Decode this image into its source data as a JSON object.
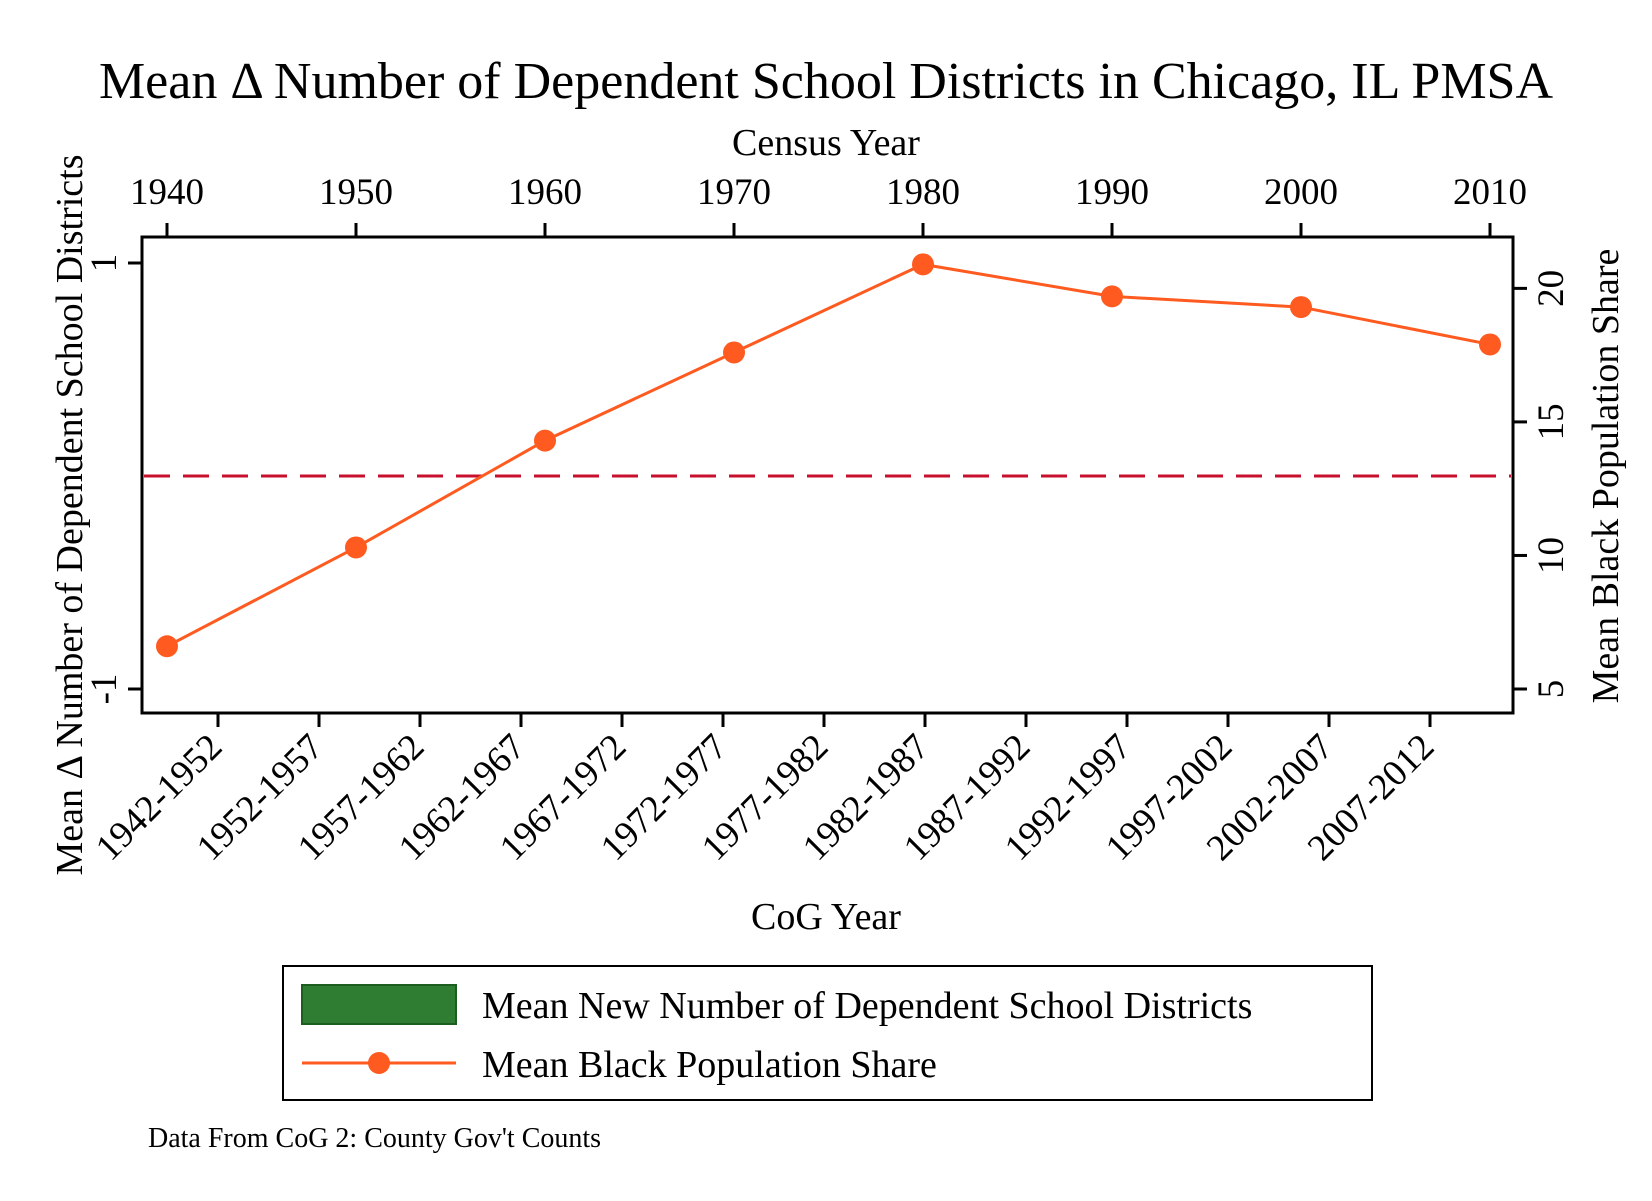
{
  "chart_data": {
    "type": "line",
    "title": "Mean Δ Number of Dependent School Districts in Chicago, IL PMSA",
    "top_axis": {
      "label": "Census Year",
      "ticks": [
        "1940",
        "1950",
        "1960",
        "1970",
        "1980",
        "1990",
        "2000",
        "2010"
      ],
      "range": [
        1940,
        2010
      ]
    },
    "bottom_axis": {
      "label": "CoG Year",
      "categories": [
        "1942-1952",
        "1952-1957",
        "1957-1962",
        "1962-1967",
        "1967-1972",
        "1972-1977",
        "1977-1982",
        "1982-1987",
        "1987-1992",
        "1992-1997",
        "1997-2002",
        "2002-2007",
        "2007-2012"
      ]
    },
    "left_axis": {
      "label": "Mean Δ Number of Dependent School Districts",
      "ticks": [
        "-1",
        "1"
      ],
      "ylim": [
        -1,
        1
      ]
    },
    "right_axis": {
      "label": "Mean Black Population Share",
      "ticks": [
        "5",
        "10",
        "15",
        "20"
      ],
      "ylim": [
        5,
        20.95
      ]
    },
    "series": [
      {
        "name": "Mean Black Population Share",
        "axis": "right",
        "x": [
          1940,
          1950,
          1960,
          1970,
          1980,
          1990,
          2000,
          2010
        ],
        "values": [
          6.6,
          10.3,
          14.3,
          17.6,
          20.9,
          19.7,
          19.3,
          17.9
        ],
        "color": "#ff5a1f"
      }
    ],
    "reference_line": {
      "axis": "left",
      "value": 0,
      "style": "dashed",
      "color": "#c8102e"
    },
    "bar_series_name": "Mean New Number of Dependent School Districts",
    "bar_series_color": "#2e7d32",
    "legend_position": "bottom",
    "note": "Data From CoG 2: County Gov't Counts",
    "grid": false
  }
}
